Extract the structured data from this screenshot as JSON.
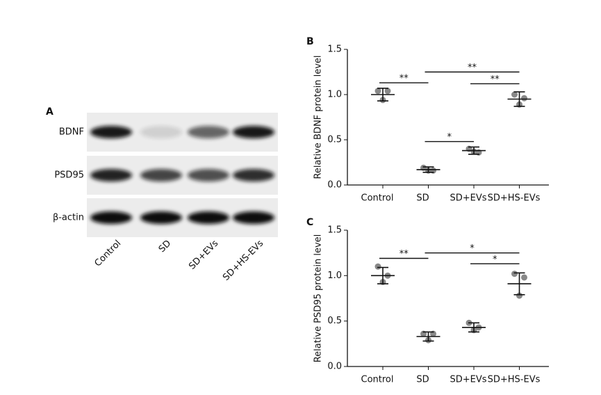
{
  "blot": {
    "panel_label": "A",
    "rows": [
      "BDNF",
      "PSD95",
      "β-actin"
    ],
    "lanes": [
      "Control",
      "SD",
      "SD+EVs",
      "SD+HS-EVs"
    ]
  },
  "chart_data": [
    {
      "type": "scatter",
      "panel_label": "B",
      "ylabel": "Relative BDNF protein level",
      "categories": [
        "Control",
        "SD",
        "SD+EVs",
        "SD+HS-EVs"
      ],
      "points": [
        [
          1.04,
          1.04,
          0.94
        ],
        [
          0.19,
          0.16,
          0.16
        ],
        [
          0.4,
          0.36,
          0.37
        ],
        [
          1.0,
          0.96,
          0.89
        ]
      ],
      "means": [
        1.0,
        0.17,
        0.38,
        0.95
      ],
      "errors": [
        0.07,
        0.03,
        0.04,
        0.08
      ],
      "color": "#888888",
      "ylim": [
        0,
        1.5
      ],
      "yticks": [
        {
          "value": 0,
          "label": "0.0"
        },
        {
          "value": 0.5,
          "label": "0.5"
        },
        {
          "value": 1,
          "label": "1.0"
        },
        {
          "value": 1.5,
          "label": "1.5"
        }
      ],
      "comparisons": [
        {
          "groups": [
            0,
            1
          ],
          "label": "**"
        },
        {
          "groups": [
            1,
            3
          ],
          "label": "**"
        },
        {
          "groups": [
            2,
            3
          ],
          "label": "**"
        },
        {
          "groups": [
            1,
            2
          ],
          "label": "*"
        }
      ]
    },
    {
      "type": "scatter",
      "panel_label": "C",
      "ylabel": "Relative PSD95 protein level",
      "categories": [
        "Control",
        "SD",
        "SD+EVs",
        "SD+HS-EVs"
      ],
      "points": [
        [
          1.1,
          1.0,
          0.93
        ],
        [
          0.36,
          0.36,
          0.29
        ],
        [
          0.48,
          0.43,
          0.4
        ],
        [
          1.02,
          0.98,
          0.78
        ]
      ],
      "means": [
        1.0,
        0.33,
        0.43,
        0.91
      ],
      "errors": [
        0.09,
        0.05,
        0.05,
        0.12
      ],
      "color": "#888888",
      "ylim": [
        0,
        1.5
      ],
      "yticks": [
        {
          "value": 0,
          "label": "0.0"
        },
        {
          "value": 0.5,
          "label": "0.5"
        },
        {
          "value": 1,
          "label": "1.0"
        },
        {
          "value": 1.5,
          "label": "1.5"
        }
      ],
      "comparisons": [
        {
          "groups": [
            0,
            1
          ],
          "label": "**"
        },
        {
          "groups": [
            1,
            3
          ],
          "label": "*"
        },
        {
          "groups": [
            2,
            3
          ],
          "label": "*"
        }
      ]
    }
  ]
}
